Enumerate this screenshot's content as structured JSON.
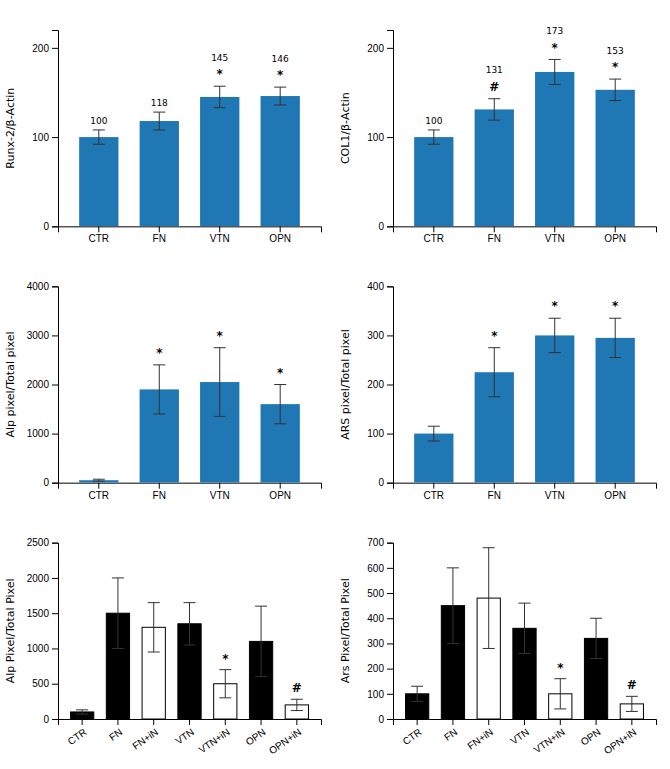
{
  "chart_data": [
    {
      "type": "bar",
      "categories": [
        "CTR",
        "FN",
        "VTN",
        "OPN"
      ],
      "values": [
        100,
        118,
        145,
        146
      ],
      "errors": [
        8,
        10,
        12,
        10
      ],
      "y_label": "Runx-2/β-Actin",
      "ylim": [
        0,
        220
      ],
      "yticks": [
        0,
        100,
        200
      ],
      "grid": false,
      "data_labels": true,
      "annotations": [
        {
          "category": "VTN",
          "text": "*"
        },
        {
          "category": "OPN",
          "text": "*"
        }
      ]
    },
    {
      "type": "bar",
      "categories": [
        "CTR",
        "FN",
        "VTN",
        "OPN"
      ],
      "values": [
        100,
        131,
        173,
        153
      ],
      "errors": [
        8,
        12,
        14,
        12
      ],
      "y_label": "COL1/β-Actin",
      "ylim": [
        0,
        220
      ],
      "yticks": [
        0,
        100,
        200
      ],
      "grid": false,
      "data_labels": true,
      "annotations": [
        {
          "category": "FN",
          "text": "#"
        },
        {
          "category": "VTN",
          "text": "*"
        },
        {
          "category": "OPN",
          "text": "*"
        }
      ]
    },
    {
      "type": "bar",
      "categories": [
        "CTR",
        "FN",
        "VTN",
        "OPN"
      ],
      "values": [
        50,
        1900,
        2050,
        1600
      ],
      "errors": [
        20,
        500,
        700,
        400
      ],
      "y_label": "Alp pixel/Total pixel",
      "ylim": [
        0,
        4000
      ],
      "yticks": [
        0,
        1000,
        2000,
        3000,
        4000
      ],
      "grid": false,
      "annotations": [
        {
          "category": "FN",
          "text": "*"
        },
        {
          "category": "VTN",
          "text": "*"
        },
        {
          "category": "OPN",
          "text": "*"
        }
      ]
    },
    {
      "type": "bar",
      "categories": [
        "CTR",
        "FN",
        "VTN",
        "OPN"
      ],
      "values": [
        100,
        225,
        300,
        295
      ],
      "errors": [
        15,
        50,
        35,
        40
      ],
      "y_label": "ARS pixel/Total pixel",
      "ylim": [
        0,
        400
      ],
      "yticks": [
        0,
        100,
        200,
        300,
        400
      ],
      "grid": false,
      "annotations": [
        {
          "category": "FN",
          "text": "*"
        },
        {
          "category": "VTN",
          "text": "*"
        },
        {
          "category": "OPN",
          "text": "*"
        }
      ]
    },
    {
      "type": "bar",
      "categories": [
        "CTR",
        "FN",
        "FN+iN",
        "VTN",
        "VTN+iN",
        "OPN",
        "OPN+iN"
      ],
      "values": [
        100,
        1500,
        1300,
        1350,
        500,
        1100,
        200
      ],
      "errors": [
        30,
        500,
        350,
        300,
        200,
        500,
        80
      ],
      "colors": [
        "#000000",
        "#000000",
        "#ffffff",
        "#000000",
        "#ffffff",
        "#000000",
        "#ffffff"
      ],
      "y_label": "Alp Pixel/Total Pixel",
      "ylim": [
        0,
        2500
      ],
      "yticks": [
        0,
        500,
        1000,
        1500,
        2000,
        2500
      ],
      "grid": false,
      "annotations": [
        {
          "category": "VTN+iN",
          "text": "*"
        },
        {
          "category": "OPN+iN",
          "text": "#"
        }
      ]
    },
    {
      "type": "bar",
      "categories": [
        "CTR",
        "FN",
        "FN+iN",
        "VTN",
        "VTN+iN",
        "OPN",
        "OPN+iN"
      ],
      "values": [
        100,
        450,
        480,
        360,
        100,
        320,
        60
      ],
      "errors": [
        30,
        150,
        200,
        100,
        60,
        80,
        30
      ],
      "colors": [
        "#000000",
        "#000000",
        "#ffffff",
        "#000000",
        "#ffffff",
        "#000000",
        "#ffffff"
      ],
      "y_label": "Ars Pixel/Total Pixel",
      "ylim": [
        0,
        700
      ],
      "yticks": [
        0,
        100,
        200,
        300,
        400,
        500,
        600,
        700
      ],
      "grid": false,
      "annotations": [
        {
          "category": "VTN+iN",
          "text": "*"
        },
        {
          "category": "OPN+iN",
          "text": "#"
        }
      ]
    }
  ]
}
